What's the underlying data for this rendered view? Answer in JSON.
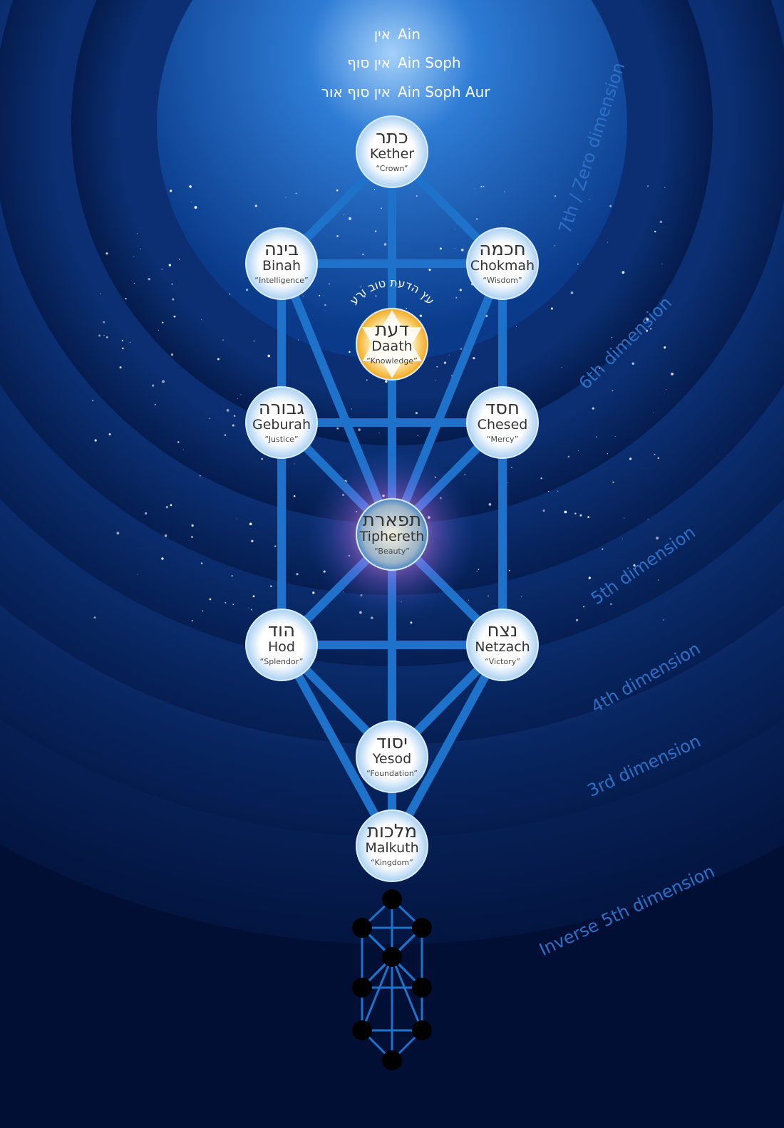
{
  "header": {
    "lines": [
      {
        "hebrew": "אין",
        "latin": "Ain"
      },
      {
        "hebrew": "אין סוף",
        "latin": "Ain Soph"
      },
      {
        "hebrew": "אין סוף אור",
        "latin": "Ain Soph Aur"
      }
    ]
  },
  "nodes": [
    {
      "hebrew": "כתר",
      "name": "Kether",
      "meaning": "“Crown”"
    },
    {
      "hebrew": "בינה",
      "name": "Binah",
      "meaning": "“Intelligence”"
    },
    {
      "hebrew": "חכמה",
      "name": "Chokmah",
      "meaning": "“Wisdom”"
    },
    {
      "hebrew": "דעת",
      "name": "Daath",
      "meaning": "“Knowledge”"
    },
    {
      "hebrew": "גבורה",
      "name": "Geburah",
      "meaning": "“Justice”"
    },
    {
      "hebrew": "חסד",
      "name": "Chesed",
      "meaning": "“Mercy”"
    },
    {
      "hebrew": "תפארת",
      "name": "Tiphereth",
      "meaning": "“Beauty”"
    },
    {
      "hebrew": "הוד",
      "name": "Hod",
      "meaning": "“Splendor”"
    },
    {
      "hebrew": "נצח",
      "name": "Netzach",
      "meaning": "“Victory”"
    },
    {
      "hebrew": "יסוד",
      "name": "Yesod",
      "meaning": "“Foundation”"
    },
    {
      "hebrew": "מלכות",
      "name": "Malkuth",
      "meaning": "“Kingdom”"
    }
  ],
  "daath_arc": "עץ הדעת טוב ורע",
  "dimensions": [
    "7th / Zero dimension",
    "6th dimension",
    "5th dimension",
    "4th dimension",
    "3rd dimension",
    "Inverse 5th dimension"
  ]
}
